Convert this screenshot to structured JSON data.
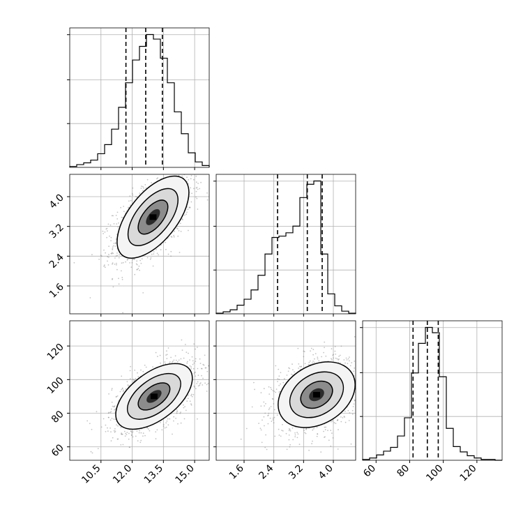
{
  "chart_data": {
    "type": "corner",
    "parameters": [
      {
        "range": [
          9.0,
          15.7
        ],
        "ticks": [
          10.5,
          12.0,
          13.5,
          15.0
        ],
        "tick_labels": [
          "10.5",
          "12.0",
          "13.5",
          "15.0"
        ]
      },
      {
        "range": [
          0.85,
          4.6
        ],
        "ticks": [
          1.6,
          2.4,
          3.2,
          4.0
        ],
        "tick_labels": [
          "1.6",
          "2.4",
          "3.2",
          "4.0"
        ]
      },
      {
        "range": [
          52,
          135
        ],
        "ticks": [
          60,
          80,
          100,
          120
        ],
        "tick_labels": [
          "60",
          "80",
          "100",
          "120"
        ]
      }
    ],
    "quantile_lines": [
      [
        11.7,
        12.65,
        13.45
      ],
      [
        2.5,
        3.3,
        3.7
      ],
      [
        82,
        90.5,
        97
      ]
    ],
    "histograms": [
      {
        "bin_start": 9.0,
        "bin_width": 0.335,
        "counts": [
          1,
          3,
          5,
          8,
          15,
          25,
          42,
          66,
          93,
          118,
          133,
          146,
          141,
          120,
          93,
          61,
          37,
          16,
          6,
          2
        ]
      },
      {
        "bin_start": 0.85,
        "bin_width": 0.1875,
        "counts": [
          1,
          3,
          6,
          13,
          22,
          36,
          58,
          90,
          115,
          117,
          122,
          132,
          175,
          195,
          200,
          90,
          30,
          12,
          4,
          1
        ]
      },
      {
        "bin_start": 52,
        "bin_width": 4.15,
        "counts": [
          1,
          3,
          7,
          12,
          17,
          32,
          56,
          115,
          154,
          175,
          168,
          110,
          42,
          18,
          11,
          6,
          3,
          1,
          1,
          0
        ]
      }
    ],
    "kde_2d": [
      {
        "row": 1,
        "col": 0,
        "center": [
          13.0,
          3.45
        ],
        "sd": [
          0.75,
          0.48
        ],
        "rho": 0.6
      },
      {
        "row": 2,
        "col": 0,
        "center": [
          13.05,
          90
        ],
        "sd": [
          0.8,
          8.5
        ],
        "rho": 0.55
      },
      {
        "row": 2,
        "col": 1,
        "center": [
          3.55,
          91
        ],
        "sd": [
          0.45,
          8.5
        ],
        "rho": 0.3
      }
    ],
    "contour_levels": [
      0.12,
      0.35,
      0.65,
      0.9
    ]
  }
}
